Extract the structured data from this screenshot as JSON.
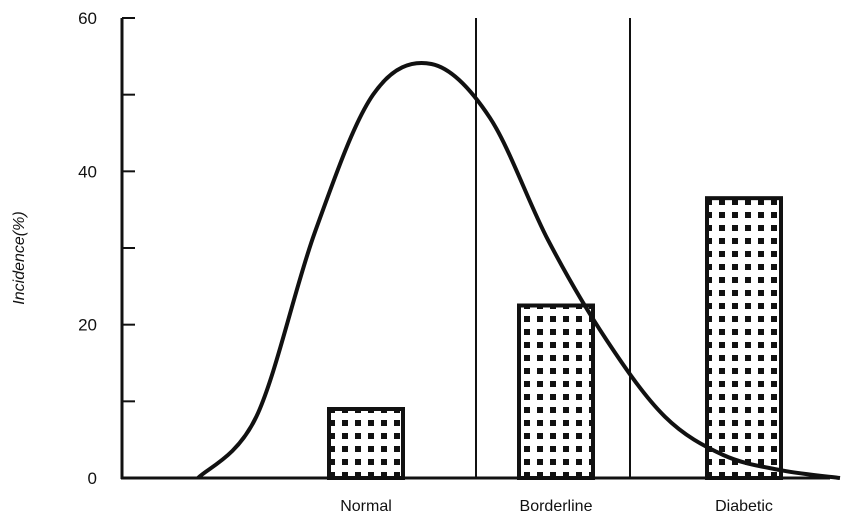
{
  "chart_data": {
    "type": "bar",
    "title": "",
    "xlabel": "",
    "ylabel": "Incidence(%)",
    "ylim": [
      0,
      60
    ],
    "yticks": [
      0,
      10,
      20,
      30,
      40,
      50,
      60
    ],
    "ytick_labels": [
      "0",
      "20",
      "40",
      "60"
    ],
    "categories": [
      "Normal",
      "Borderline",
      "Diabetic"
    ],
    "values": [
      9,
      22.5,
      36.5
    ],
    "bar_fill": "dotted pattern (black dots on white)",
    "category_dividers": true,
    "grid": false,
    "curve": {
      "type": "line",
      "description": "skewed distribution curve",
      "x": [
        0.0,
        0.3,
        0.6,
        0.9,
        1.2,
        1.5,
        1.8,
        2.1,
        2.4,
        2.7,
        3.0,
        3.3
      ],
      "y": [
        0,
        8,
        32,
        50,
        54,
        47,
        31,
        18,
        8,
        3,
        1,
        0
      ]
    }
  }
}
